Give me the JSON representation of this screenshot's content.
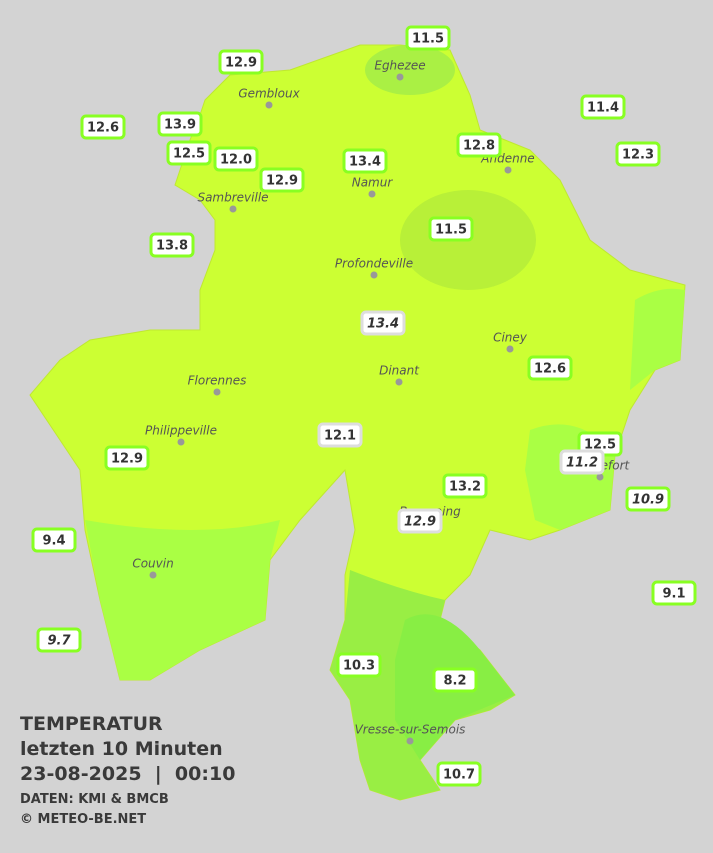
{
  "stations": [
    "11.5",
    "12.9",
    "11.4",
    "12.6",
    "13.9",
    "12.5",
    "12.0",
    "13.4",
    "12.8",
    "12.3",
    "12.9",
    "11.5",
    "13.8",
    "13.4",
    "12.6",
    "12.1",
    "12.5",
    "11.2",
    "12.9",
    "13.2",
    "10.9",
    "12.9",
    "9.4",
    "9.1",
    "9.7",
    "10.3",
    "8.2",
    "10.7"
  ],
  "towns": [
    "Eghezee",
    "Gembloux",
    "Andenne",
    "Namur",
    "Sambreville",
    "Profondeville",
    "Ciney",
    "Dinant",
    "Florennes",
    "Philippeville",
    "Beauraing",
    "Rochefort",
    "Couvin",
    "Vresse-sur-Semois"
  ],
  "info": {
    "title": "TEMPERATUR",
    "subtitle": "letzten 10 Minuten",
    "datetime": "23-08-2025  |  00:10",
    "source": "DATEN: KMI & BMCB",
    "copyright": "© METEO-BE.NET"
  }
}
